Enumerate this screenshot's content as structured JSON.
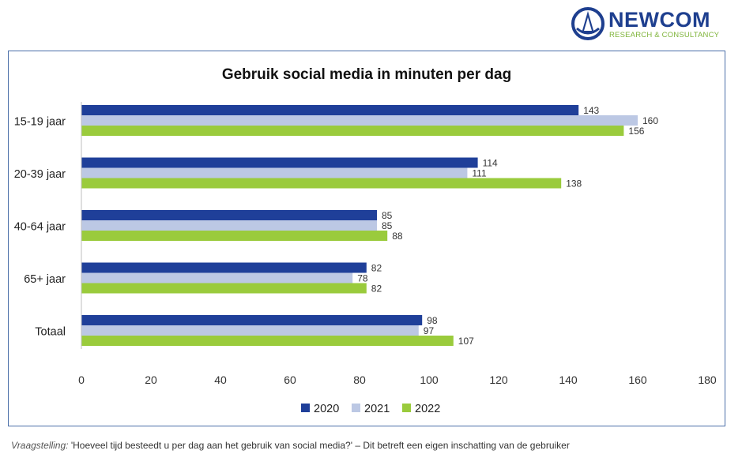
{
  "logo": {
    "name": "NEWCOM",
    "tagline": "RESEARCH & CONSULTANCY"
  },
  "chart_data": {
    "type": "bar",
    "orientation": "horizontal",
    "title": "Gebruik social media in minuten per dag",
    "categories": [
      "15-19 jaar",
      "20-39 jaar",
      "40-64 jaar",
      "65+ jaar",
      "Totaal"
    ],
    "series": [
      {
        "name": "2020",
        "color": "#1f3f99",
        "values": [
          143,
          114,
          85,
          82,
          98
        ]
      },
      {
        "name": "2021",
        "color": "#bcc8e4",
        "values": [
          160,
          111,
          85,
          78,
          97
        ]
      },
      {
        "name": "2022",
        "color": "#9acb3c",
        "values": [
          156,
          138,
          88,
          82,
          107
        ]
      }
    ],
    "xlim": [
      0,
      180
    ],
    "xticks": [
      "0",
      "20",
      "40",
      "60",
      "80",
      "100",
      "120",
      "140",
      "160",
      "180"
    ],
    "grid": false,
    "legend_position": "bottom"
  },
  "footnote": {
    "prefix": "Vraagstelling:",
    "text": "'Hoeveel tijd besteedt u per dag aan het gebruik van social media?' – Dit betreft een eigen inschatting van de gebruiker"
  }
}
